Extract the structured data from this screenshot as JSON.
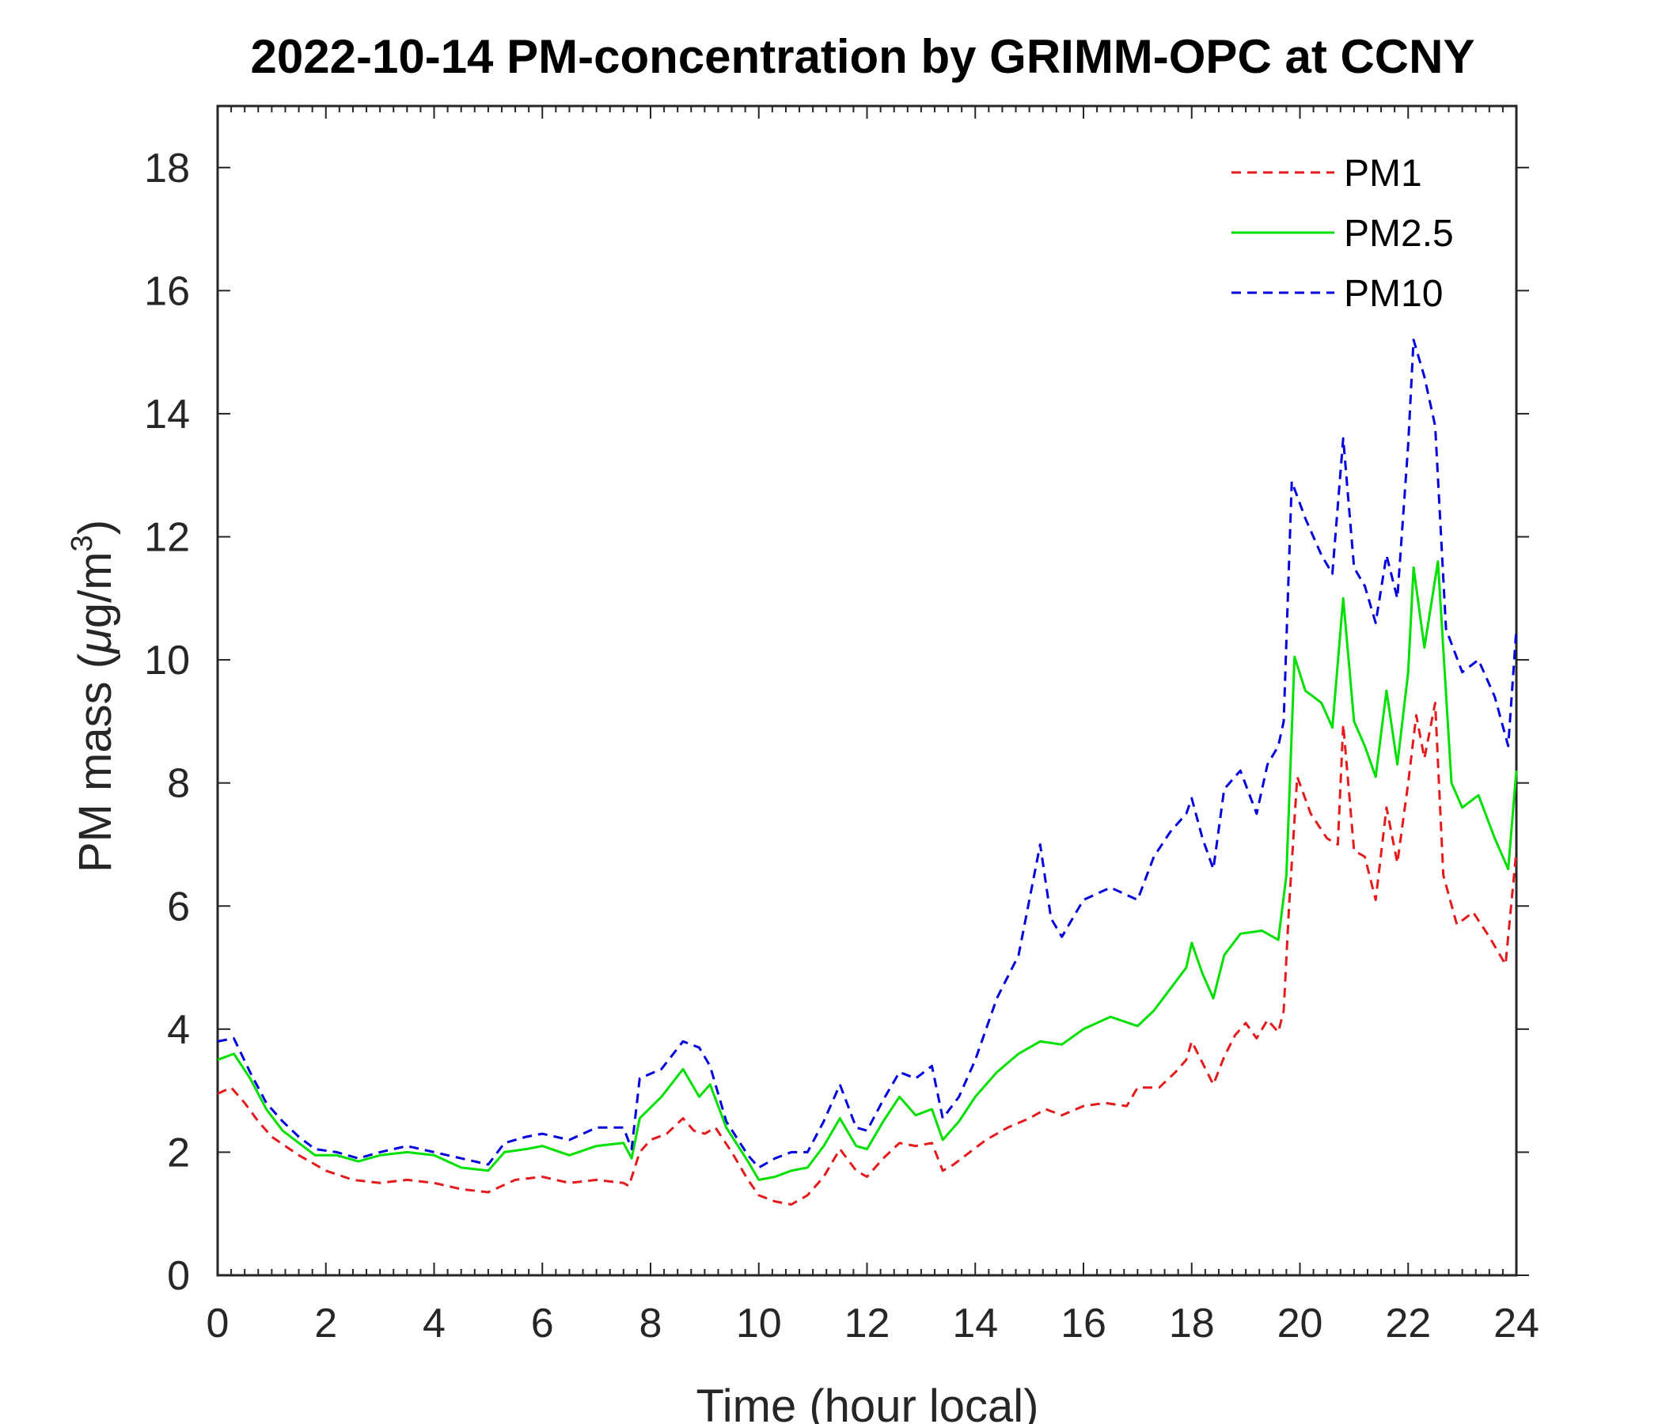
{
  "chart_data": {
    "type": "line",
    "title": "2022-10-14 PM-concentration by GRIMM-OPC at CCNY",
    "xlabel": "Time (hour local)",
    "ylabel_main": "PM mass (",
    "ylabel_mu": "μ",
    "ylabel_unit": "g/m",
    "ylabel_exp": "3",
    "ylabel_close": ")",
    "xlim": [
      0,
      24
    ],
    "ylim": [
      0,
      19
    ],
    "xticks": [
      "0",
      "2",
      "4",
      "6",
      "8",
      "10",
      "12",
      "14",
      "16",
      "18",
      "20",
      "22",
      "24"
    ],
    "yticks": [
      "0",
      "2",
      "4",
      "6",
      "8",
      "10",
      "12",
      "14",
      "16",
      "18"
    ],
    "legend_position": "top-right",
    "grid": false,
    "series": [
      {
        "name": "PM1",
        "color": "#e41a1c",
        "style": "dashed",
        "points": [
          [
            0,
            2.95
          ],
          [
            0.25,
            3.05
          ],
          [
            0.5,
            2.8
          ],
          [
            0.75,
            2.5
          ],
          [
            1,
            2.25
          ],
          [
            1.5,
            1.95
          ],
          [
            2,
            1.7
          ],
          [
            2.5,
            1.55
          ],
          [
            3,
            1.5
          ],
          [
            3.5,
            1.55
          ],
          [
            4,
            1.5
          ],
          [
            4.5,
            1.4
          ],
          [
            5,
            1.35
          ],
          [
            5.5,
            1.55
          ],
          [
            6,
            1.6
          ],
          [
            6.5,
            1.5
          ],
          [
            7,
            1.55
          ],
          [
            7.5,
            1.5
          ],
          [
            7.6,
            1.45
          ],
          [
            7.8,
            2.0
          ],
          [
            8,
            2.2
          ],
          [
            8.3,
            2.3
          ],
          [
            8.6,
            2.55
          ],
          [
            8.8,
            2.35
          ],
          [
            9,
            2.3
          ],
          [
            9.2,
            2.4
          ],
          [
            9.5,
            2.0
          ],
          [
            9.8,
            1.55
          ],
          [
            10,
            1.3
          ],
          [
            10.3,
            1.2
          ],
          [
            10.6,
            1.15
          ],
          [
            10.9,
            1.3
          ],
          [
            11.2,
            1.6
          ],
          [
            11.5,
            2.05
          ],
          [
            11.8,
            1.7
          ],
          [
            12,
            1.6
          ],
          [
            12.3,
            1.9
          ],
          [
            12.6,
            2.15
          ],
          [
            12.9,
            2.1
          ],
          [
            13.2,
            2.15
          ],
          [
            13.4,
            1.7
          ],
          [
            13.6,
            1.8
          ],
          [
            13.9,
            2.0
          ],
          [
            14.2,
            2.2
          ],
          [
            14.6,
            2.4
          ],
          [
            15,
            2.55
          ],
          [
            15.3,
            2.7
          ],
          [
            15.6,
            2.6
          ],
          [
            16,
            2.75
          ],
          [
            16.4,
            2.8
          ],
          [
            16.8,
            2.75
          ],
          [
            17,
            3.05
          ],
          [
            17.4,
            3.05
          ],
          [
            17.7,
            3.3
          ],
          [
            17.9,
            3.5
          ],
          [
            18,
            3.8
          ],
          [
            18.2,
            3.45
          ],
          [
            18.4,
            3.1
          ],
          [
            18.6,
            3.55
          ],
          [
            18.8,
            3.9
          ],
          [
            19,
            4.1
          ],
          [
            19.2,
            3.85
          ],
          [
            19.4,
            4.15
          ],
          [
            19.6,
            3.95
          ],
          [
            19.7,
            4.3
          ],
          [
            19.8,
            6.0
          ],
          [
            19.95,
            8.1
          ],
          [
            20.2,
            7.5
          ],
          [
            20.5,
            7.1
          ],
          [
            20.7,
            7.0
          ],
          [
            20.8,
            8.95
          ],
          [
            21,
            6.9
          ],
          [
            21.2,
            6.8
          ],
          [
            21.4,
            6.1
          ],
          [
            21.6,
            7.6
          ],
          [
            21.8,
            6.7
          ],
          [
            22,
            8.0
          ],
          [
            22.15,
            9.1
          ],
          [
            22.3,
            8.4
          ],
          [
            22.5,
            9.3
          ],
          [
            22.65,
            6.5
          ],
          [
            22.9,
            5.7
          ],
          [
            23.2,
            5.9
          ],
          [
            23.5,
            5.5
          ],
          [
            23.8,
            5.05
          ],
          [
            24,
            6.9
          ]
        ]
      },
      {
        "name": "PM2.5",
        "color": "#00e000",
        "style": "solid",
        "points": [
          [
            0,
            3.5
          ],
          [
            0.3,
            3.6
          ],
          [
            0.6,
            3.2
          ],
          [
            0.9,
            2.7
          ],
          [
            1.2,
            2.35
          ],
          [
            1.5,
            2.15
          ],
          [
            1.8,
            1.95
          ],
          [
            2.2,
            1.95
          ],
          [
            2.6,
            1.85
          ],
          [
            3,
            1.95
          ],
          [
            3.5,
            2.0
          ],
          [
            4,
            1.95
          ],
          [
            4.5,
            1.75
          ],
          [
            5,
            1.7
          ],
          [
            5.3,
            2.0
          ],
          [
            5.7,
            2.05
          ],
          [
            6,
            2.1
          ],
          [
            6.5,
            1.95
          ],
          [
            7,
            2.1
          ],
          [
            7.5,
            2.15
          ],
          [
            7.65,
            1.9
          ],
          [
            7.8,
            2.55
          ],
          [
            8.2,
            2.9
          ],
          [
            8.6,
            3.35
          ],
          [
            8.9,
            2.9
          ],
          [
            9.1,
            3.1
          ],
          [
            9.4,
            2.4
          ],
          [
            9.8,
            1.85
          ],
          [
            10,
            1.55
          ],
          [
            10.3,
            1.6
          ],
          [
            10.6,
            1.7
          ],
          [
            10.9,
            1.75
          ],
          [
            11.2,
            2.1
          ],
          [
            11.5,
            2.55
          ],
          [
            11.8,
            2.1
          ],
          [
            12,
            2.05
          ],
          [
            12.3,
            2.5
          ],
          [
            12.6,
            2.9
          ],
          [
            12.9,
            2.6
          ],
          [
            13.2,
            2.7
          ],
          [
            13.4,
            2.2
          ],
          [
            13.7,
            2.5
          ],
          [
            14,
            2.9
          ],
          [
            14.4,
            3.3
          ],
          [
            14.8,
            3.6
          ],
          [
            15.2,
            3.8
          ],
          [
            15.6,
            3.75
          ],
          [
            16,
            4.0
          ],
          [
            16.5,
            4.2
          ],
          [
            17,
            4.05
          ],
          [
            17.3,
            4.3
          ],
          [
            17.6,
            4.65
          ],
          [
            17.9,
            5.0
          ],
          [
            18,
            5.4
          ],
          [
            18.2,
            4.9
          ],
          [
            18.4,
            4.5
          ],
          [
            18.6,
            5.2
          ],
          [
            18.9,
            5.55
          ],
          [
            19.3,
            5.6
          ],
          [
            19.6,
            5.45
          ],
          [
            19.75,
            6.5
          ],
          [
            19.9,
            10.05
          ],
          [
            20.1,
            9.5
          ],
          [
            20.4,
            9.3
          ],
          [
            20.6,
            8.9
          ],
          [
            20.8,
            11.0
          ],
          [
            21,
            9.0
          ],
          [
            21.2,
            8.6
          ],
          [
            21.4,
            8.1
          ],
          [
            21.6,
            9.5
          ],
          [
            21.8,
            8.3
          ],
          [
            22,
            9.8
          ],
          [
            22.1,
            11.5
          ],
          [
            22.3,
            10.2
          ],
          [
            22.55,
            11.6
          ],
          [
            22.8,
            8.0
          ],
          [
            23,
            7.6
          ],
          [
            23.3,
            7.8
          ],
          [
            23.6,
            7.1
          ],
          [
            23.85,
            6.6
          ],
          [
            24,
            8.2
          ]
        ]
      },
      {
        "name": "PM10",
        "color": "#0000dd",
        "style": "dashed",
        "points": [
          [
            0,
            3.8
          ],
          [
            0.3,
            3.85
          ],
          [
            0.6,
            3.3
          ],
          [
            0.9,
            2.8
          ],
          [
            1.2,
            2.5
          ],
          [
            1.5,
            2.25
          ],
          [
            1.8,
            2.05
          ],
          [
            2.2,
            2.0
          ],
          [
            2.6,
            1.9
          ],
          [
            3,
            2.0
          ],
          [
            3.5,
            2.1
          ],
          [
            4,
            2.0
          ],
          [
            4.5,
            1.9
          ],
          [
            5,
            1.8
          ],
          [
            5.3,
            2.15
          ],
          [
            5.7,
            2.25
          ],
          [
            6,
            2.3
          ],
          [
            6.5,
            2.2
          ],
          [
            7,
            2.4
          ],
          [
            7.5,
            2.4
          ],
          [
            7.65,
            2.05
          ],
          [
            7.8,
            3.2
          ],
          [
            8.2,
            3.35
          ],
          [
            8.6,
            3.8
          ],
          [
            8.9,
            3.7
          ],
          [
            9.1,
            3.4
          ],
          [
            9.4,
            2.5
          ],
          [
            9.8,
            1.95
          ],
          [
            10,
            1.75
          ],
          [
            10.3,
            1.9
          ],
          [
            10.6,
            2.0
          ],
          [
            10.9,
            2.0
          ],
          [
            11.2,
            2.5
          ],
          [
            11.5,
            3.1
          ],
          [
            11.8,
            2.4
          ],
          [
            12,
            2.35
          ],
          [
            12.3,
            2.85
          ],
          [
            12.6,
            3.3
          ],
          [
            12.9,
            3.2
          ],
          [
            13.2,
            3.4
          ],
          [
            13.4,
            2.55
          ],
          [
            13.7,
            2.9
          ],
          [
            14,
            3.5
          ],
          [
            14.4,
            4.5
          ],
          [
            14.8,
            5.2
          ],
          [
            15.2,
            7.0
          ],
          [
            15.4,
            5.8
          ],
          [
            15.6,
            5.5
          ],
          [
            16,
            6.1
          ],
          [
            16.5,
            6.3
          ],
          [
            17,
            6.1
          ],
          [
            17.3,
            6.8
          ],
          [
            17.6,
            7.2
          ],
          [
            17.9,
            7.5
          ],
          [
            18,
            7.75
          ],
          [
            18.2,
            7.1
          ],
          [
            18.4,
            6.6
          ],
          [
            18.6,
            7.9
          ],
          [
            18.9,
            8.2
          ],
          [
            19.2,
            7.5
          ],
          [
            19.4,
            8.3
          ],
          [
            19.6,
            8.6
          ],
          [
            19.7,
            9.0
          ],
          [
            19.85,
            12.9
          ],
          [
            20.1,
            12.3
          ],
          [
            20.4,
            11.7
          ],
          [
            20.6,
            11.4
          ],
          [
            20.8,
            13.6
          ],
          [
            21,
            11.5
          ],
          [
            21.2,
            11.2
          ],
          [
            21.4,
            10.6
          ],
          [
            21.6,
            11.7
          ],
          [
            21.8,
            11.0
          ],
          [
            22,
            13.5
          ],
          [
            22.1,
            15.2
          ],
          [
            22.3,
            14.6
          ],
          [
            22.5,
            13.8
          ],
          [
            22.7,
            10.5
          ],
          [
            23,
            9.8
          ],
          [
            23.3,
            10.0
          ],
          [
            23.6,
            9.4
          ],
          [
            23.85,
            8.6
          ],
          [
            24,
            10.5
          ]
        ]
      }
    ]
  }
}
